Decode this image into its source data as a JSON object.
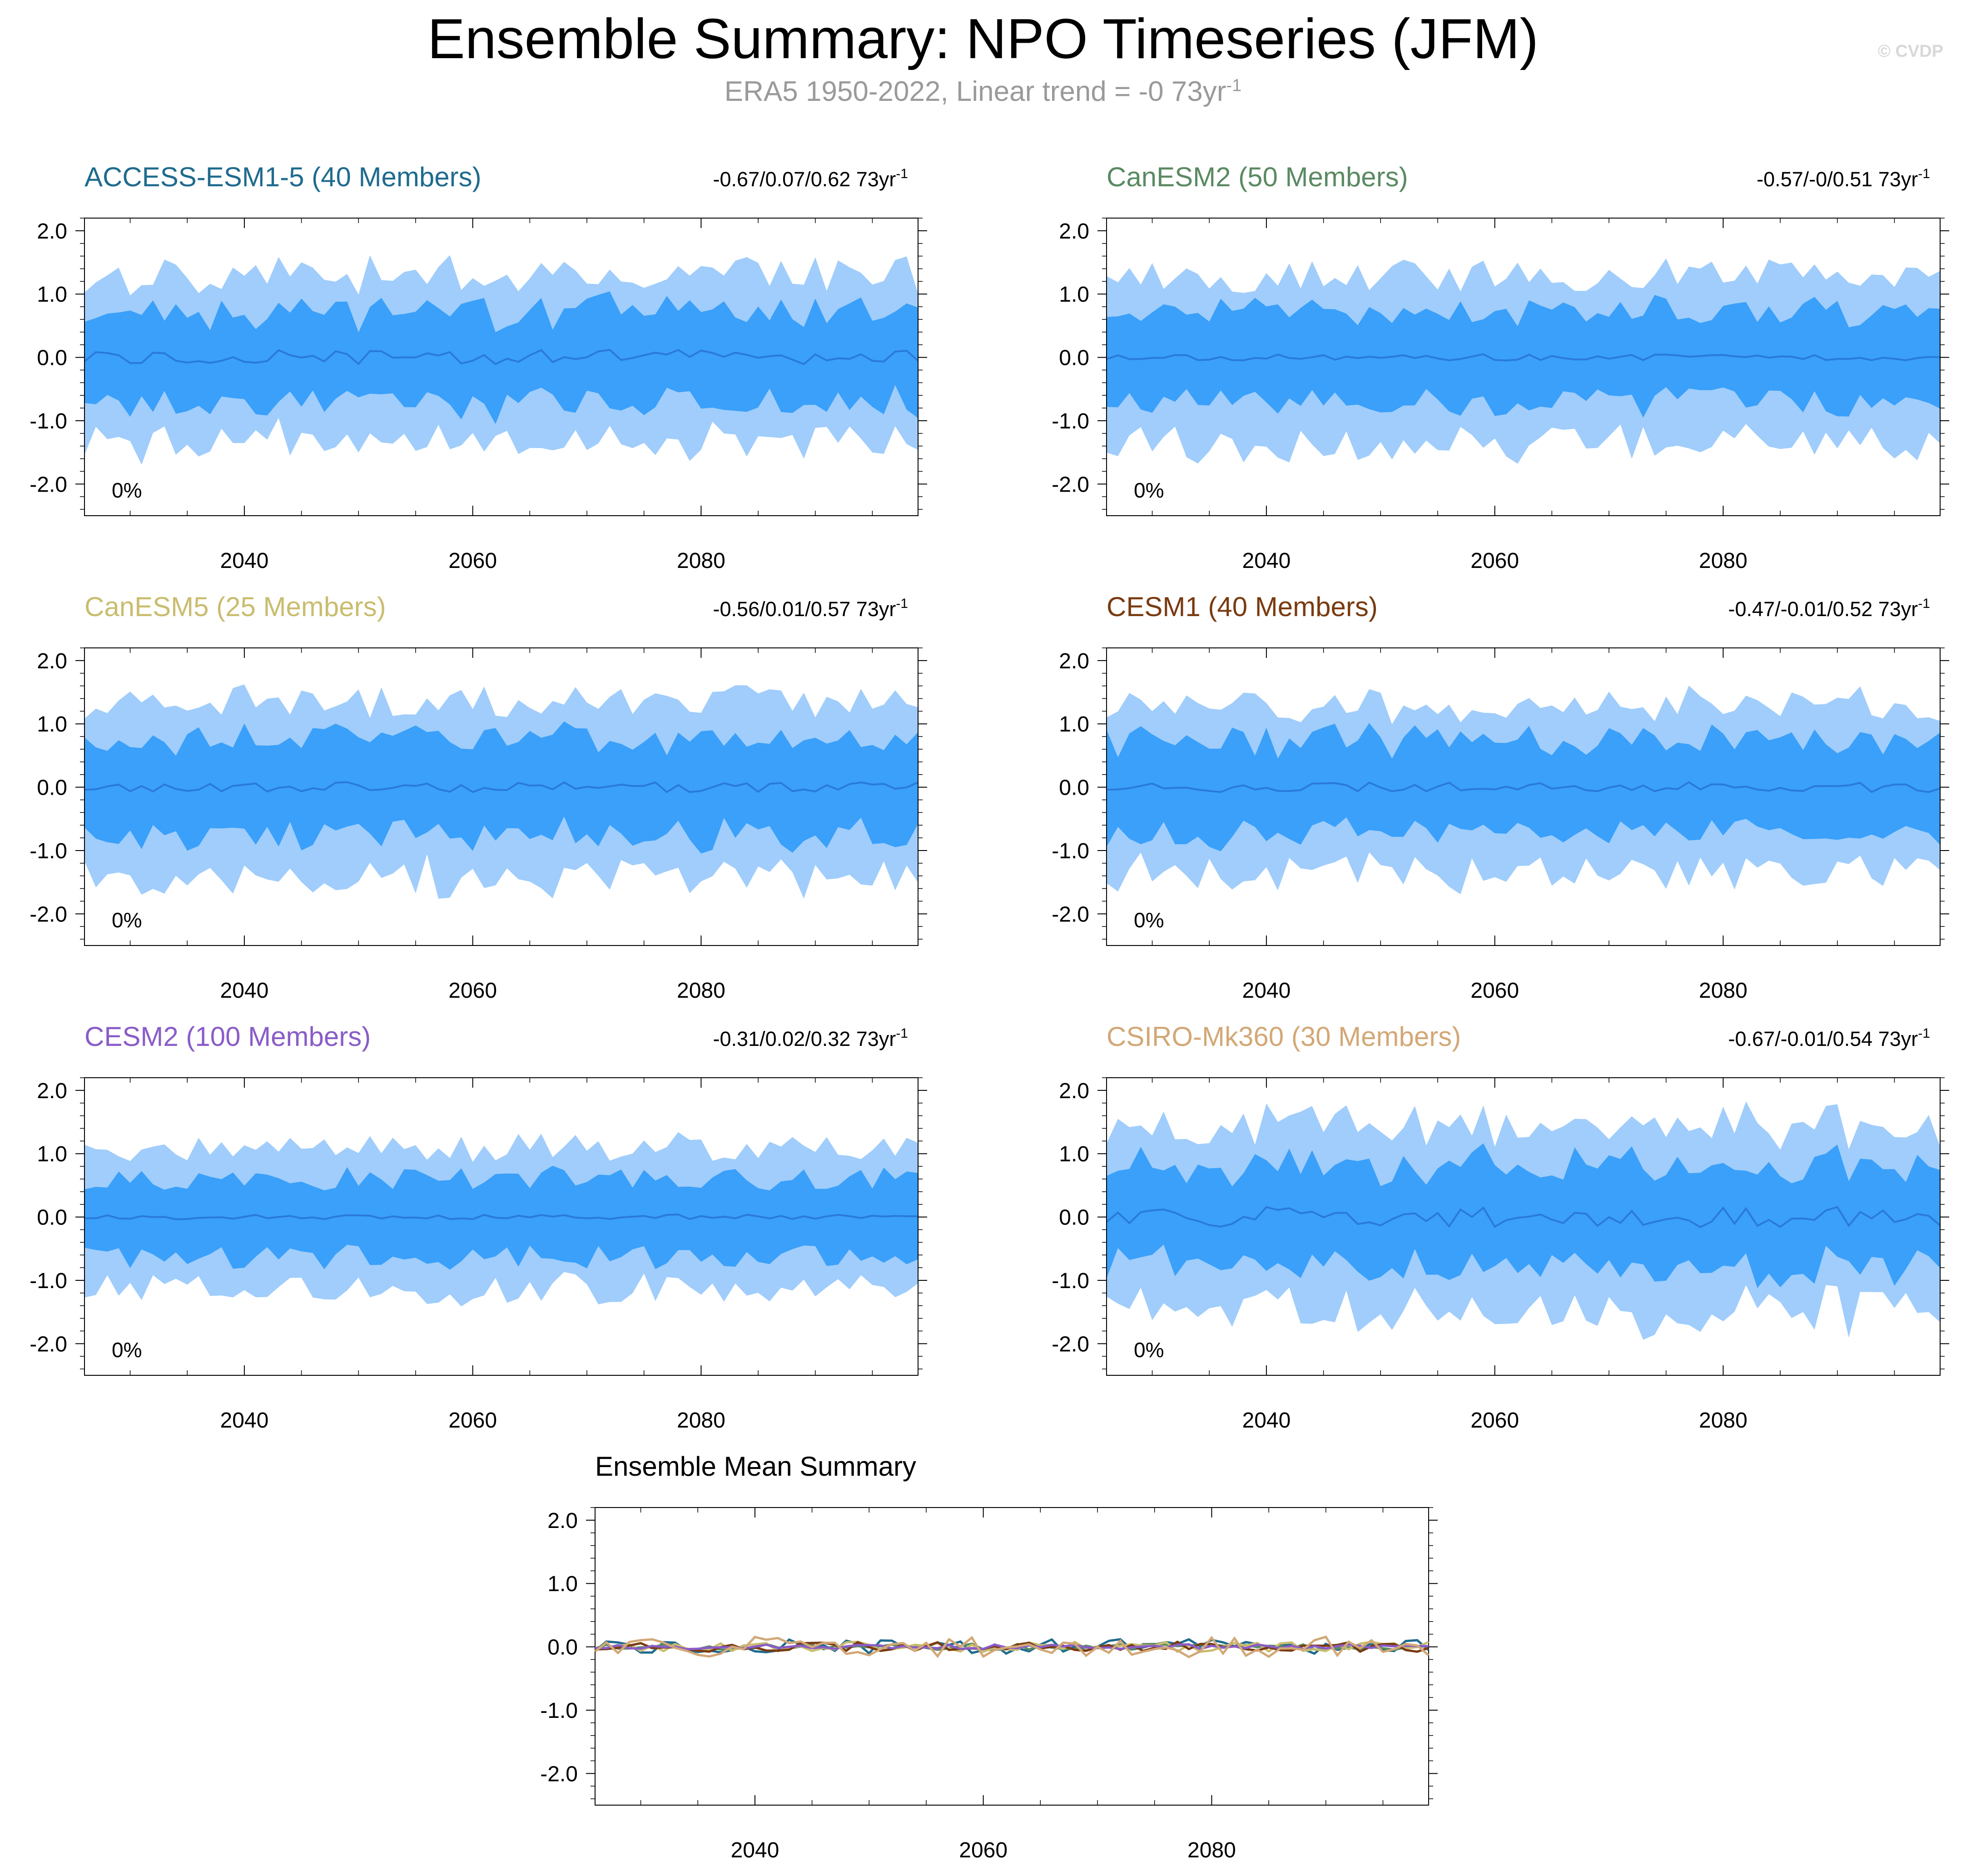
{
  "title": "Ensemble Summary: NPO Timeseries (JFM)",
  "subtitle": {
    "text": "ERA5 1950-2022, Linear trend = -0 73yr",
    "superscript": "-1"
  },
  "watermark": "© CVDP",
  "colors": {
    "outer_band": "#a0cdfb",
    "inner_band": "#3aa0fa",
    "mean_line": "#2a7ad8",
    "axis": "#000000"
  },
  "chart_data": [
    {
      "type": "area",
      "title": "ACCESS-ESM1-5 (40 Members)",
      "title_color": "#1f6b8e",
      "trend_text": "-0.67/0.07/0.62 73yr",
      "trend_sup": "-1",
      "percent_label": "0%",
      "x_range": [
        2026,
        2099
      ],
      "ylim": [
        -2.5,
        2.2
      ],
      "yticks": [
        "2.0",
        "1.0",
        "0.0",
        "-1.0",
        "-2.0"
      ],
      "xticks": [
        "2040",
        "2060",
        "2080"
      ],
      "seed": 11,
      "amp": 1.0,
      "mean_amp": 0.12,
      "start_year": 2026,
      "end_year": 2099
    },
    {
      "type": "area",
      "title": "CanESM2 (50 Members)",
      "title_color": "#5a8a62",
      "trend_text": "-0.57/-0/0.51 73yr",
      "trend_sup": "-1",
      "percent_label": "0%",
      "x_range": [
        2026,
        2099
      ],
      "ylim": [
        -2.5,
        2.2
      ],
      "yticks": [
        "2.0",
        "1.0",
        "0.0",
        "-1.0",
        "-2.0"
      ],
      "xticks": [
        "2040",
        "2060",
        "2080"
      ],
      "seed": 23,
      "amp": 1.0,
      "mean_amp": 0.05,
      "start_year": 2026,
      "end_year": 2099
    },
    {
      "type": "area",
      "title": "CanESM5 (25 Members)",
      "title_color": "#c9bd6f",
      "trend_text": "-0.56/0.01/0.57 73yr",
      "trend_sup": "-1",
      "percent_label": "0%",
      "x_range": [
        2026,
        2099
      ],
      "ylim": [
        -2.5,
        2.2
      ],
      "yticks": [
        "2.0",
        "1.0",
        "0.0",
        "-1.0",
        "-2.0"
      ],
      "xticks": [
        "2040",
        "2060",
        "2080"
      ],
      "seed": 37,
      "amp": 1.05,
      "mean_amp": 0.08,
      "start_year": 2026,
      "end_year": 2099
    },
    {
      "type": "area",
      "title": "CESM1 (40 Members)",
      "title_color": "#7a3a10",
      "trend_text": "-0.47/-0.01/0.52 73yr",
      "trend_sup": "-1",
      "percent_label": "0%",
      "x_range": [
        2026,
        2099
      ],
      "ylim": [
        -2.5,
        2.2
      ],
      "yticks": [
        "2.0",
        "1.0",
        "0.0",
        "-1.0",
        "-2.0"
      ],
      "xticks": [
        "2040",
        "2060",
        "2080"
      ],
      "seed": 41,
      "amp": 1.0,
      "mean_amp": 0.08,
      "start_year": 2026,
      "end_year": 2099
    },
    {
      "type": "area",
      "title": "CESM2 (100 Members)",
      "title_color": "#8a5cc8",
      "trend_text": "-0.31/0.02/0.32 73yr",
      "trend_sup": "-1",
      "percent_label": "0%",
      "x_range": [
        2026,
        2099
      ],
      "ylim": [
        -2.5,
        2.2
      ],
      "yticks": [
        "2.0",
        "1.0",
        "0.0",
        "-1.0",
        "-2.0"
      ],
      "xticks": [
        "2040",
        "2060",
        "2080"
      ],
      "seed": 53,
      "amp": 0.85,
      "mean_amp": 0.04,
      "start_year": 2026,
      "end_year": 2099
    },
    {
      "type": "area",
      "title": "CSIRO-Mk360 (30 Members)",
      "title_color": "#d2a877",
      "trend_text": "-0.67/-0.01/0.54 73yr",
      "trend_sup": "-1",
      "percent_label": "0%",
      "x_range": [
        2026,
        2099
      ],
      "ylim": [
        -2.5,
        2.2
      ],
      "yticks": [
        "2.0",
        "1.0",
        "0.0",
        "-1.0",
        "-2.0"
      ],
      "xticks": [
        "2040",
        "2060",
        "2080"
      ],
      "seed": 67,
      "amp": 1.1,
      "mean_amp": 0.16,
      "start_year": 2026,
      "end_year": 2099
    },
    {
      "type": "line",
      "title": "Ensemble Mean Summary",
      "x_range": [
        2026,
        2099
      ],
      "ylim": [
        -2.5,
        2.2
      ],
      "yticks": [
        "2.0",
        "1.0",
        "0.0",
        "-1.0",
        "-2.0"
      ],
      "xticks": [
        "2040",
        "2060",
        "2080"
      ],
      "series": [
        {
          "color": "#1f6b8e",
          "seed": 11,
          "amp": 0.12
        },
        {
          "color": "#5a8a62",
          "seed": 23,
          "amp": 0.05
        },
        {
          "color": "#c9bd6f",
          "seed": 37,
          "amp": 0.08
        },
        {
          "color": "#7a3a10",
          "seed": 41,
          "amp": 0.08
        },
        {
          "color": "#8a5cc8",
          "seed": 53,
          "amp": 0.04
        },
        {
          "color": "#d2a877",
          "seed": 67,
          "amp": 0.16
        }
      ]
    }
  ]
}
